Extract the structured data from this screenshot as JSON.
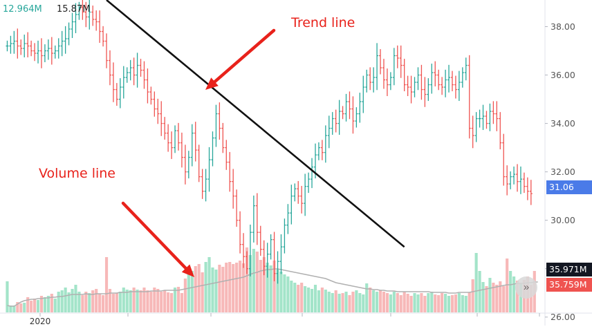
{
  "volume_labels": {
    "current": "12.964M",
    "average": "15.87M"
  },
  "annotations": {
    "trend": "Trend line",
    "volume": "Volume line"
  },
  "price_tags": {
    "last_price": "31.06",
    "volume_avg": "35.971M",
    "volume_current": "35.759M"
  },
  "play_button": {
    "glyph": "»",
    "icon": "double-chevron-right-icon"
  },
  "colors": {
    "up": "#26a69a",
    "down": "#ef5350",
    "vol_up": "#a3e4c9",
    "vol_down": "#f7b8b8",
    "trend_line": "#111111",
    "arrow": "#e8221b",
    "vol_avg_line": "#b0b0b0",
    "price_tag": "#4a7be8"
  },
  "chart_data": {
    "type": "bar",
    "title": "",
    "x_tick_labels": [
      "2020",
      "",
      "",
      "",
      "",
      "",
      ""
    ],
    "y_ticks": [
      "38.00",
      "36.00",
      "34.00",
      "32.00",
      "30.00",
      "28.00",
      "26.00"
    ],
    "ylim": [
      25.65,
      39.1
    ],
    "xlabel": "",
    "ylabel": "",
    "grid": false,
    "price_bars": [
      37.2,
      37.3,
      37.4,
      37.2,
      37.1,
      37.3,
      37.2,
      37.0,
      36.9,
      37.0,
      36.8,
      37.0,
      37.1,
      36.9,
      37.0,
      37.2,
      37.4,
      37.5,
      37.9,
      38.2,
      38.5,
      38.8,
      38.6,
      38.4,
      38.6,
      38.3,
      38.2,
      37.8,
      37.4,
      36.6,
      36.0,
      35.4,
      35.0,
      35.5,
      35.9,
      36.1,
      36.3,
      36.0,
      36.4,
      36.2,
      35.8,
      35.3,
      35.0,
      34.6,
      34.4,
      34.0,
      33.6,
      33.2,
      33.0,
      33.7,
      33.2,
      32.6,
      32.0,
      32.6,
      33.6,
      32.9,
      31.8,
      31.2,
      31.7,
      32.5,
      33.4,
      34.4,
      33.8,
      33.0,
      32.4,
      31.6,
      31.0,
      30.0,
      29.0,
      28.5,
      28.0,
      29.5,
      30.6,
      29.5,
      28.8,
      28.1,
      28.6,
      29.2,
      27.8,
      28.3,
      28.9,
      29.8,
      30.3,
      31.0,
      31.3,
      31.0,
      30.7,
      31.4,
      31.7,
      32.2,
      32.7,
      33.0,
      32.8,
      33.5,
      33.8,
      34.2,
      34.0,
      34.5,
      34.4,
      34.9,
      34.6,
      34.1,
      34.4,
      34.9,
      35.5,
      36.0,
      35.7,
      35.9,
      36.8,
      36.3,
      35.8,
      35.6,
      35.9,
      36.8,
      36.7,
      36.4,
      35.6,
      35.5,
      35.3,
      35.7,
      36.0,
      35.4,
      35.2,
      35.6,
      36.1,
      36.0,
      35.6,
      35.5,
      35.8,
      35.9,
      35.6,
      35.4,
      35.7,
      36.1,
      36.4,
      33.8,
      33.5,
      34.2,
      34.2,
      34.3,
      34.0,
      34.5,
      34.4,
      34.2,
      33.2,
      31.8,
      31.5,
      31.8,
      31.9,
      31.6,
      31.7,
      31.4,
      31.2,
      31.1
    ],
    "volume_bars": [
      0.45,
      0.1,
      0.1,
      0.15,
      0.13,
      0.14,
      0.22,
      0.17,
      0.2,
      0.18,
      0.24,
      0.22,
      0.24,
      0.27,
      0.2,
      0.3,
      0.32,
      0.36,
      0.29,
      0.34,
      0.4,
      0.3,
      0.25,
      0.3,
      0.28,
      0.32,
      0.34,
      0.27,
      0.25,
      0.8,
      0.34,
      0.27,
      0.28,
      0.3,
      0.36,
      0.33,
      0.32,
      0.36,
      0.33,
      0.32,
      0.36,
      0.32,
      0.3,
      0.36,
      0.34,
      0.3,
      0.32,
      0.29,
      0.28,
      0.36,
      0.37,
      0.28,
      0.49,
      0.56,
      0.6,
      0.67,
      0.7,
      0.58,
      0.73,
      0.8,
      0.65,
      0.62,
      0.69,
      0.66,
      0.72,
      0.73,
      0.7,
      0.72,
      0.75,
      0.71,
      0.94,
      0.83,
      0.92,
      0.88,
      0.76,
      0.8,
      0.72,
      0.68,
      0.75,
      0.62,
      0.59,
      0.55,
      0.52,
      0.46,
      0.43,
      0.4,
      0.43,
      0.38,
      0.36,
      0.34,
      0.4,
      0.32,
      0.36,
      0.33,
      0.3,
      0.28,
      0.32,
      0.27,
      0.28,
      0.3,
      0.25,
      0.3,
      0.32,
      0.28,
      0.26,
      0.42,
      0.36,
      0.32,
      0.3,
      0.32,
      0.3,
      0.28,
      0.26,
      0.3,
      0.28,
      0.25,
      0.3,
      0.27,
      0.24,
      0.28,
      0.26,
      0.28,
      0.24,
      0.28,
      0.3,
      0.26,
      0.25,
      0.28,
      0.27,
      0.24,
      0.25,
      0.26,
      0.28,
      0.25,
      0.24,
      0.29,
      0.48,
      0.86,
      0.6,
      0.44,
      0.38,
      0.5,
      0.43,
      0.4,
      0.45,
      0.38,
      0.78,
      0.6,
      0.52,
      0.46,
      0.42,
      0.47,
      0.52,
      0.4,
      0.6
    ],
    "volume_avg_line": [
      0.1,
      0.09,
      0.09,
      0.12,
      0.15,
      0.17,
      0.18,
      0.19,
      0.19,
      0.2,
      0.2,
      0.21,
      0.21,
      0.22,
      0.22,
      0.23,
      0.23,
      0.24,
      0.25,
      0.26,
      0.26,
      0.26,
      0.26,
      0.27,
      0.26,
      0.26,
      0.27,
      0.27,
      0.27,
      0.27,
      0.28,
      0.28,
      0.28,
      0.29,
      0.29,
      0.29,
      0.3,
      0.3,
      0.3,
      0.3,
      0.3,
      0.3,
      0.31,
      0.31,
      0.31,
      0.31,
      0.32,
      0.32,
      0.32,
      0.32,
      0.32,
      0.33,
      0.34,
      0.35,
      0.36,
      0.37,
      0.38,
      0.39,
      0.4,
      0.41,
      0.42,
      0.43,
      0.44,
      0.45,
      0.46,
      0.47,
      0.48,
      0.49,
      0.5,
      0.51,
      0.53,
      0.55,
      0.57,
      0.58,
      0.6,
      0.61,
      0.62,
      0.62,
      0.63,
      0.63,
      0.62,
      0.61,
      0.6,
      0.59,
      0.58,
      0.57,
      0.56,
      0.55,
      0.54,
      0.53,
      0.52,
      0.51,
      0.5,
      0.49,
      0.47,
      0.45,
      0.43,
      0.42,
      0.41,
      0.4,
      0.39,
      0.38,
      0.37,
      0.36,
      0.35,
      0.34,
      0.34,
      0.33,
      0.33,
      0.32,
      0.32,
      0.31,
      0.31,
      0.31,
      0.3,
      0.3,
      0.3,
      0.3,
      0.3,
      0.3,
      0.3,
      0.3,
      0.3,
      0.3,
      0.29,
      0.29,
      0.29,
      0.29,
      0.29,
      0.28,
      0.28,
      0.28,
      0.29,
      0.29,
      0.29,
      0.29,
      0.3,
      0.31,
      0.32,
      0.33,
      0.34,
      0.35,
      0.36,
      0.37,
      0.38,
      0.39,
      0.4,
      0.4,
      0.41,
      0.42,
      0.42,
      0.42,
      0.43,
      0.43,
      0.44,
      0.44
    ],
    "volume_scale": "relative to tallest bar in the volume pane",
    "trend_line": {
      "from": {
        "bar": 29,
        "price": 39.1
      },
      "to": {
        "bar": 116,
        "price": 28.9
      }
    }
  }
}
